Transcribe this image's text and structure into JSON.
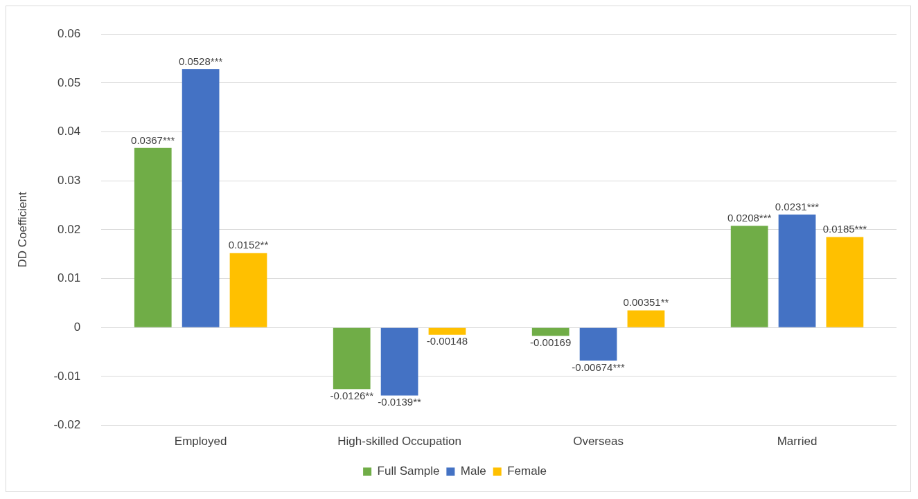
{
  "chart_data": {
    "type": "bar",
    "ylabel": "DD Coefficient",
    "categories": [
      "Employed",
      "High-skilled Occupation",
      "Overseas",
      "Married"
    ],
    "series": [
      {
        "name": "Full Sample",
        "color": "#70ad47",
        "values": [
          0.0367,
          -0.0126,
          -0.00169,
          0.0208
        ],
        "value_labels": [
          "0.0367***",
          "-0.0126**",
          "-0.00169",
          "0.0208***"
        ]
      },
      {
        "name": "Male",
        "color": "#4472c4",
        "values": [
          0.0528,
          -0.0139,
          -0.00674,
          0.0231
        ],
        "value_labels": [
          "0.0528***",
          "-0.0139**",
          "-0.00674***",
          "0.0231***"
        ]
      },
      {
        "name": "Female",
        "color": "#ffc000",
        "values": [
          0.0152,
          -0.00148,
          0.00351,
          0.0185
        ],
        "value_labels": [
          "0.0152**",
          "-0.00148",
          "0.00351**",
          "0.0185***"
        ]
      }
    ],
    "ylim": [
      -0.02,
      0.06
    ],
    "yticks": [
      -0.02,
      -0.01,
      0,
      0.01,
      0.02,
      0.03,
      0.04,
      0.05,
      0.06
    ],
    "grid": "y",
    "legend": "bottom"
  }
}
